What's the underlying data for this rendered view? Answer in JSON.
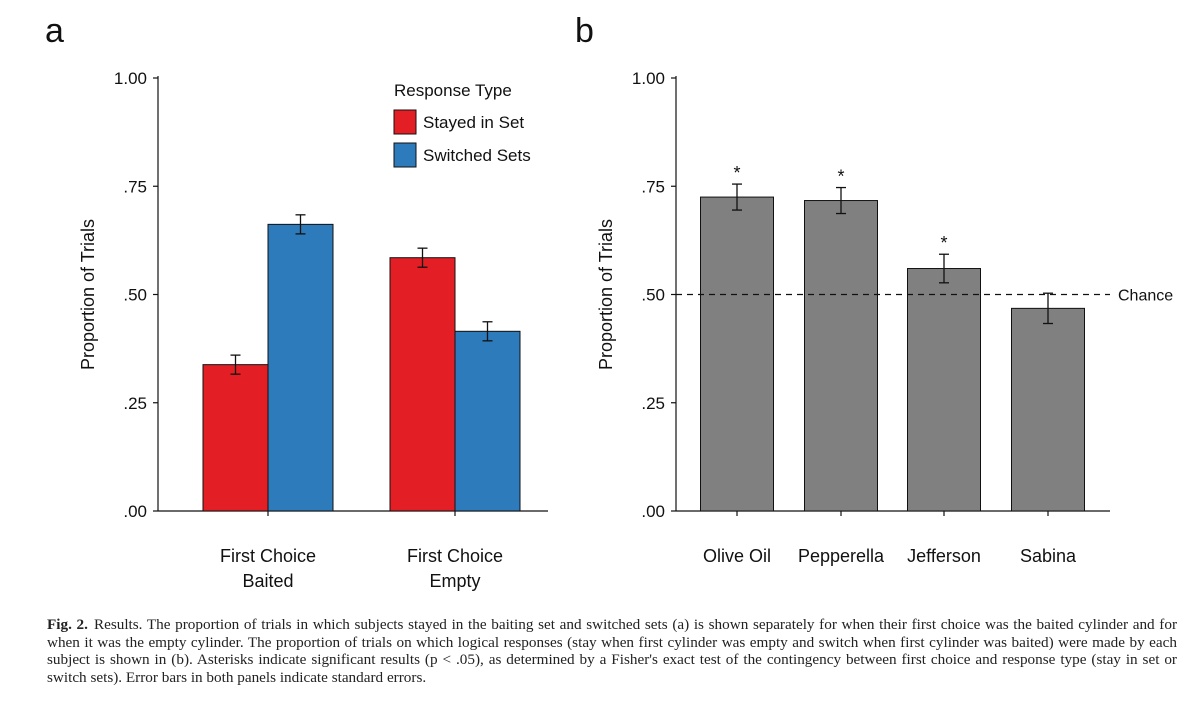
{
  "chart_data": [
    {
      "panel_letter": "a",
      "type": "bar",
      "ylabel": "Proportion of Trials",
      "ylim": [
        0,
        1
      ],
      "yticks": [
        0,
        0.25,
        0.5,
        0.75,
        1.0
      ],
      "ytick_labels": [
        ".00",
        ".25",
        ".50",
        ".75",
        "1.00"
      ],
      "categories": [
        [
          "First Choice",
          "Baited"
        ],
        [
          "First Choice",
          "Empty"
        ]
      ],
      "legend_title": "Response Type",
      "legend_position": "top-right",
      "series": [
        {
          "name": "Stayed in Set",
          "color": "#e31e24",
          "values": [
            0.338,
            0.585
          ],
          "errors": [
            0.022,
            0.022
          ]
        },
        {
          "name": "Switched Sets",
          "color": "#2d7bbb",
          "values": [
            0.662,
            0.415
          ],
          "errors": [
            0.022,
            0.022
          ]
        }
      ],
      "grid": false
    },
    {
      "panel_letter": "b",
      "type": "bar",
      "ylabel": "Proportion of Trials",
      "ylim": [
        0,
        1
      ],
      "yticks": [
        0,
        0.25,
        0.5,
        0.75,
        1.0
      ],
      "ytick_labels": [
        ".00",
        ".25",
        ".50",
        ".75",
        "1.00"
      ],
      "categories": [
        "Olive Oil",
        "Pepperella",
        "Jefferson",
        "Sabina"
      ],
      "values": [
        0.725,
        0.717,
        0.56,
        0.468
      ],
      "errors": [
        0.03,
        0.03,
        0.033,
        0.035
      ],
      "significant": [
        "*",
        "*",
        "*",
        ""
      ],
      "bar_color": "#808080",
      "reference_line": {
        "value": 0.5,
        "label": "Chance",
        "style": "dashed"
      },
      "grid": false
    }
  ],
  "caption": {
    "label": "Fig. 2.",
    "text": "Results. The proportion of trials in which subjects stayed in the baiting set and switched sets (a) is shown separately for when their first choice was the baited cylinder and for when it was the empty cylinder. The proportion of trials on which logical responses (stay when first cylinder was empty and switch when first cylinder was baited) were made by each subject is shown in (b). Asterisks indicate significant results (p < .05), as determined by a Fisher's exact test of the contingency between first choice and response type (stay in set or switch sets). Error bars in both panels indicate standard errors."
  }
}
